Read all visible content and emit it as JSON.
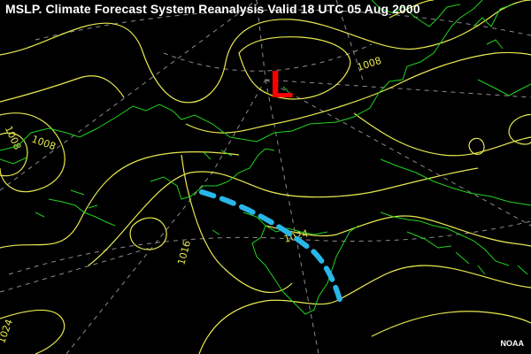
{
  "title": "MSLP. Climate Forecast System Reanalysis Valid 18 UTC 05 Aug 2000",
  "credit": "NOAA",
  "pressure_system": {
    "label": "L",
    "color": "#ff0000"
  },
  "isobar_labels": [
    "1008",
    "1008",
    "1008",
    "1016",
    "1024",
    "1024"
  ],
  "colors": {
    "background": "#000000",
    "isobar": "#e8e850",
    "coastline": "#1fd21f",
    "gridline": "#9a9a9a",
    "front_trough": "#29b6e8",
    "title_text": "#ffffff"
  }
}
